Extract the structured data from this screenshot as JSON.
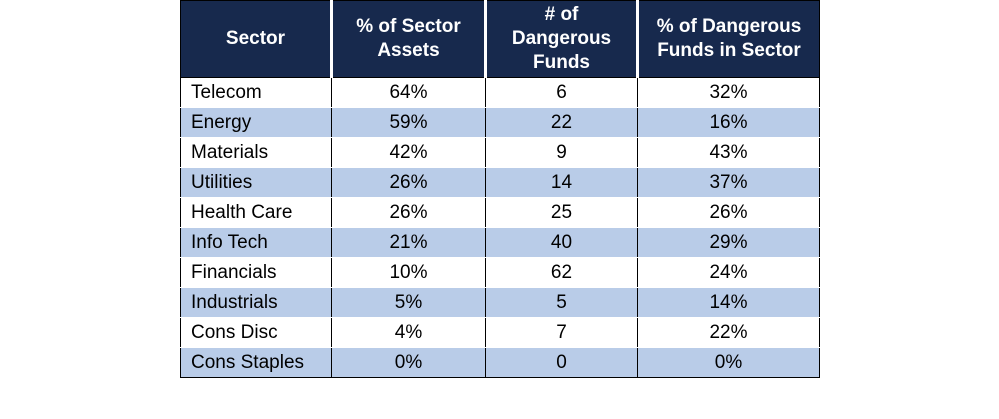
{
  "chart_data": {
    "type": "table",
    "columns": [
      "Sector",
      "% of Sector Assets",
      "# of Dangerous Funds",
      "% of Dangerous Funds in Sector"
    ],
    "header_lines": [
      [
        "Sector"
      ],
      [
        "% of Sector",
        "Assets"
      ],
      [
        "# of",
        "Dangerous",
        "Funds"
      ],
      [
        "% of Dangerous",
        "Funds in Sector"
      ]
    ],
    "rows": [
      {
        "sector": "Telecom",
        "pct_assets": "64%",
        "dangerous_funds": "6",
        "pct_dangerous": "32%"
      },
      {
        "sector": "Energy",
        "pct_assets": "59%",
        "dangerous_funds": "22",
        "pct_dangerous": "16%"
      },
      {
        "sector": "Materials",
        "pct_assets": "42%",
        "dangerous_funds": "9",
        "pct_dangerous": "43%"
      },
      {
        "sector": "Utilities",
        "pct_assets": "26%",
        "dangerous_funds": "14",
        "pct_dangerous": "37%"
      },
      {
        "sector": "Health Care",
        "pct_assets": "26%",
        "dangerous_funds": "25",
        "pct_dangerous": "26%"
      },
      {
        "sector": "Info Tech",
        "pct_assets": "21%",
        "dangerous_funds": "40",
        "pct_dangerous": "29%"
      },
      {
        "sector": "Financials",
        "pct_assets": "10%",
        "dangerous_funds": "62",
        "pct_dangerous": "24%"
      },
      {
        "sector": "Industrials",
        "pct_assets": "5%",
        "dangerous_funds": "5",
        "pct_dangerous": "14%"
      },
      {
        "sector": "Cons Disc",
        "pct_assets": "4%",
        "dangerous_funds": "7",
        "pct_dangerous": "22%"
      },
      {
        "sector": "Cons Staples",
        "pct_assets": "0%",
        "dangerous_funds": "0",
        "pct_dangerous": "0%"
      }
    ],
    "colors": {
      "header_bg": "#17294d",
      "header_text": "#ffffff",
      "band_light": "#ffffff",
      "band_blue": "#b9cce8"
    }
  }
}
